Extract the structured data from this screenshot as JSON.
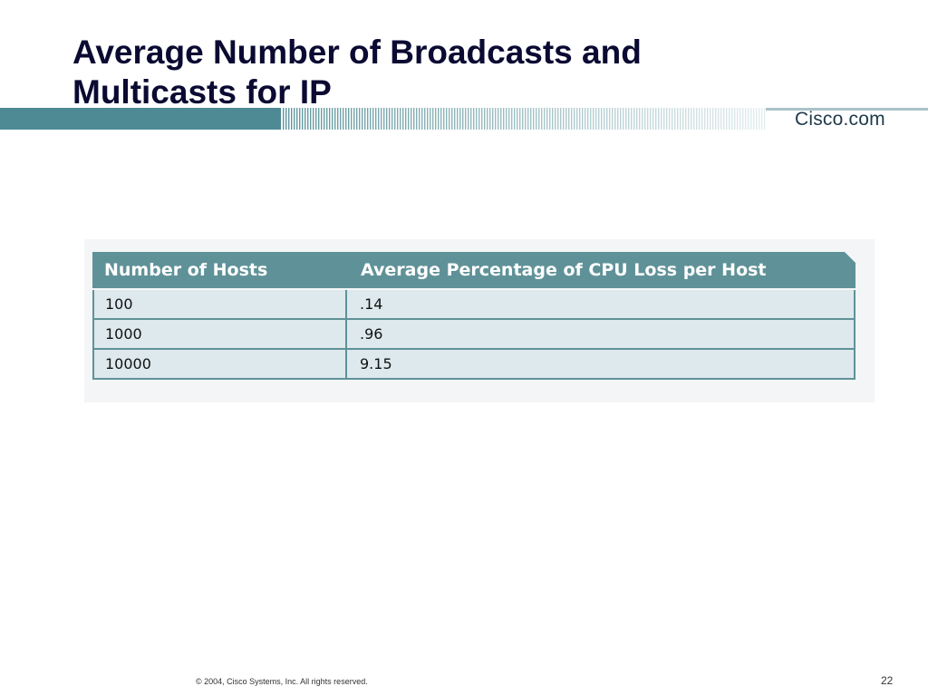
{
  "slide": {
    "title_lines": [
      "Average Number of Broadcasts and",
      "Multicasts for IP"
    ],
    "brand": "Cisco.com",
    "copyright": "© 2004, Cisco Systems, Inc. All rights reserved.",
    "page_number": "22"
  },
  "table": {
    "headers": [
      "Number of Hosts",
      "Average Percentage of CPU Loss per Host"
    ],
    "rows": [
      [
        "100",
        ".14"
      ],
      [
        "1000",
        ".96"
      ],
      [
        "10000",
        "9.15"
      ]
    ]
  },
  "colors": {
    "header_teal": "#5f9298",
    "row_fill": "#dde9ec",
    "title_navy": "#0a0a32"
  }
}
